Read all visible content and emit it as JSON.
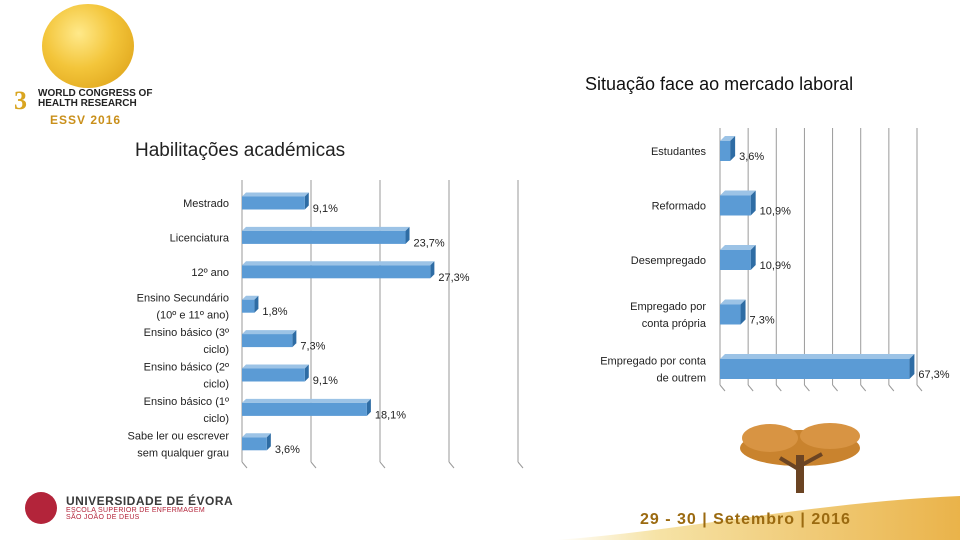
{
  "logo": {
    "ordinal": "3",
    "line1": "WORLD CONGRESS OF",
    "line2": "HEALTH RESEARCH",
    "subtitle": "ESSV 2016"
  },
  "university": {
    "name": "UNIVERSIDADE DE ÉVORA",
    "school1": "ESCOLA SUPERIOR DE ENFERMAGEM",
    "school2": "SÃO JOÃO DE DEUS"
  },
  "footer": {
    "dates": "29 - 30 | Setembro | 2016"
  },
  "colors": {
    "bar": "#5b9bd5",
    "bar_top": "#9cc3e6",
    "bar_side": "#2e6ca4",
    "grid": "#9a9a9a"
  },
  "chart_data": [
    {
      "type": "bar",
      "orientation": "horizontal",
      "title": "Habilitações académicas",
      "categories": [
        "Mestrado",
        "Licenciatura",
        "12º ano",
        "Ensino Secundário (10º e 11º ano)",
        "Ensino básico (3º ciclo)",
        "Ensino básico (2º ciclo)",
        "Ensino básico (1º ciclo)",
        "Sabe ler ou escrever sem qualquer grau"
      ],
      "category_lines": [
        [
          "Mestrado"
        ],
        [
          "Licenciatura"
        ],
        [
          "12º ano"
        ],
        [
          "Ensino Secundário",
          "(10º e 11º ano)"
        ],
        [
          "Ensino básico (3º",
          "ciclo)"
        ],
        [
          "Ensino básico (2º",
          "ciclo)"
        ],
        [
          "Ensino básico (1º",
          "ciclo)"
        ],
        [
          "Sabe ler ou escrever",
          "sem qualquer grau"
        ]
      ],
      "values": [
        9.1,
        23.7,
        27.3,
        1.8,
        7.3,
        9.1,
        18.1,
        3.6
      ],
      "labels": [
        "9,1%",
        "23,7%",
        "27,3%",
        "1,8%",
        "7,3%",
        "9,1%",
        "18,1%",
        "3,6%"
      ],
      "xlim": [
        0,
        40
      ],
      "unit": "%",
      "grid": true
    },
    {
      "type": "bar",
      "orientation": "horizontal",
      "title": "Situação face ao mercado laboral",
      "categories": [
        "Estudantes",
        "Reformado",
        "Desempregado",
        "Empregado por conta própria",
        "Empregado por conta de outrem"
      ],
      "category_lines": [
        [
          "Estudantes"
        ],
        [
          "Reformado"
        ],
        [
          "Desempregado"
        ],
        [
          "Empregado por",
          "conta própria"
        ],
        [
          "Empregado por conta",
          "de outrem"
        ]
      ],
      "values": [
        3.6,
        10.9,
        10.9,
        7.3,
        67.3
      ],
      "labels": [
        "3,6%",
        "10,9%",
        "10,9%",
        "7,3%",
        "67,3%"
      ],
      "xlim": [
        0,
        70
      ],
      "unit": "%",
      "grid": true
    }
  ]
}
